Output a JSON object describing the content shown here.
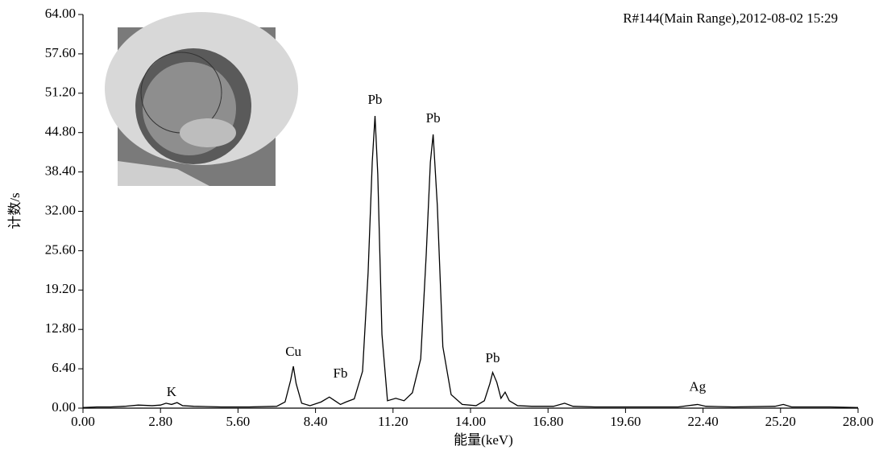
{
  "chart_data": {
    "type": "line",
    "title": "R#144(Main Range),2012-08-02 15:29",
    "x_label": "能量(keV)",
    "y_label": "计数/s",
    "color": "#000000",
    "x": [
      0,
      0.5,
      1,
      1.5,
      2,
      2.5,
      2.8,
      3.0,
      3.2,
      3.4,
      3.6,
      4,
      5,
      6,
      7,
      7.3,
      7.5,
      7.6,
      7.7,
      7.9,
      8.2,
      8.6,
      8.9,
      9.1,
      9.3,
      9.5,
      9.8,
      10.1,
      10.3,
      10.45,
      10.55,
      10.65,
      10.8,
      11.0,
      11.3,
      11.6,
      11.9,
      12.2,
      12.4,
      12.55,
      12.65,
      12.8,
      13.0,
      13.3,
      13.7,
      14.2,
      14.5,
      14.7,
      14.8,
      14.95,
      15.1,
      15.25,
      15.4,
      15.7,
      16.2,
      17.0,
      17.4,
      17.7,
      18.5,
      20,
      21.5,
      22.2,
      22.5,
      23.5,
      25,
      25.3,
      25.6,
      27,
      28
    ],
    "values": [
      0.1,
      0.2,
      0.2,
      0.3,
      0.5,
      0.4,
      0.5,
      0.8,
      0.6,
      0.9,
      0.4,
      0.3,
      0.2,
      0.2,
      0.3,
      1.0,
      4.5,
      6.8,
      4.0,
      0.8,
      0.4,
      1.0,
      1.8,
      1.2,
      0.6,
      1.0,
      1.5,
      6,
      22,
      40,
      47.5,
      38,
      12,
      1.2,
      1.6,
      1.2,
      2.5,
      8,
      25,
      40,
      44.5,
      33,
      10,
      2.2,
      0.6,
      0.4,
      1.2,
      4.0,
      5.8,
      4.2,
      1.6,
      2.6,
      1.2,
      0.4,
      0.3,
      0.3,
      0.8,
      0.3,
      0.2,
      0.2,
      0.2,
      0.6,
      0.3,
      0.2,
      0.3,
      0.6,
      0.2,
      0.2,
      0.1
    ],
    "xlim": [
      0,
      28
    ],
    "ylim": [
      0,
      64
    ],
    "xticks": [
      {
        "value": 0,
        "label": "0.00"
      },
      {
        "value": 2.8,
        "label": "2.80"
      },
      {
        "value": 5.6,
        "label": "5.60"
      },
      {
        "value": 8.4,
        "label": "8.40"
      },
      {
        "value": 11.2,
        "label": "11.20"
      },
      {
        "value": 14,
        "label": "14.00"
      },
      {
        "value": 16.8,
        "label": "16.80"
      },
      {
        "value": 19.6,
        "label": "19.60"
      },
      {
        "value": 22.4,
        "label": "22.40"
      },
      {
        "value": 25.2,
        "label": "25.20"
      },
      {
        "value": 28,
        "label": "28.00"
      }
    ],
    "yticks": [
      {
        "value": 0,
        "label": "0.00"
      },
      {
        "value": 6.4,
        "label": "6.40"
      },
      {
        "value": 12.8,
        "label": "12.80"
      },
      {
        "value": 19.2,
        "label": "19.20"
      },
      {
        "value": 25.6,
        "label": "25.60"
      },
      {
        "value": 32,
        "label": "32.00"
      },
      {
        "value": 38.4,
        "label": "38.40"
      },
      {
        "value": 44.8,
        "label": "44.80"
      },
      {
        "value": 51.2,
        "label": "51.20"
      },
      {
        "value": 57.6,
        "label": "57.60"
      },
      {
        "value": 64,
        "label": "64.00"
      }
    ],
    "annotations": [
      {
        "text": "K",
        "x": 3.2,
        "y": 2.5
      },
      {
        "text": "Cu",
        "x": 7.6,
        "y": 9
      },
      {
        "text": "Fb",
        "x": 9.3,
        "y": 5.5
      },
      {
        "text": "Pb",
        "x": 10.55,
        "y": 50
      },
      {
        "text": "Pb",
        "x": 12.65,
        "y": 47
      },
      {
        "text": "Pb",
        "x": 14.8,
        "y": 8
      },
      {
        "text": "Ag",
        "x": 22.2,
        "y": 3.3
      }
    ]
  }
}
